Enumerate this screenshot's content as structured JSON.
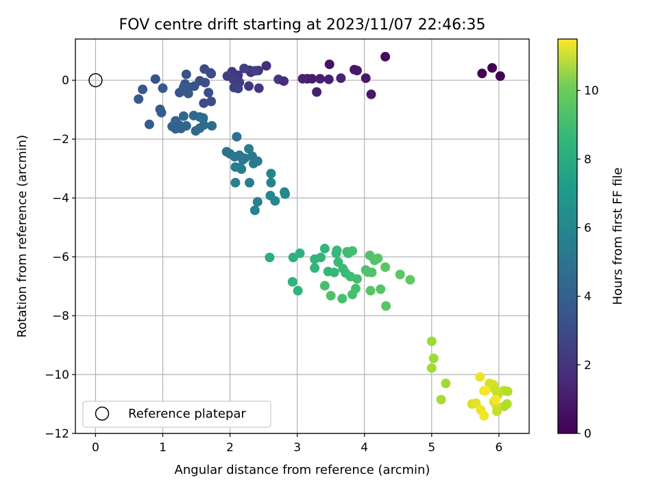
{
  "chart_data": {
    "type": "scatter",
    "title": "FOV centre drift starting at 2023/11/07 22:46:35",
    "xlabel": "Angular distance from reference (arcmin)",
    "ylabel": "Rotation from reference (arcmin)",
    "xlim": [
      -0.3,
      6.45
    ],
    "ylim": [
      -12,
      1.4
    ],
    "xticks": [
      0,
      1,
      2,
      3,
      4,
      5,
      6
    ],
    "yticks": [
      0,
      -2,
      -4,
      -6,
      -8,
      -10,
      -12
    ],
    "grid": true,
    "colormap": "viridis",
    "colorbar": {
      "label": "Hours from first FF file",
      "range": [
        0,
        11.5
      ],
      "ticks": [
        0,
        2,
        4,
        6,
        8,
        10
      ]
    },
    "legend": {
      "placement": "lower-left",
      "entries": [
        {
          "label": "Reference platepar",
          "marker": "open-circle"
        }
      ]
    },
    "reference_point": {
      "x": 0,
      "y": 0
    },
    "points": [
      [
        4.31,
        0.8,
        0.3
      ],
      [
        3.48,
        0.54,
        0.6
      ],
      [
        3.85,
        0.36,
        0.7
      ],
      [
        3.89,
        0.33,
        0.7
      ],
      [
        4.02,
        0.07,
        0.8
      ],
      [
        4.1,
        -0.48,
        0.8
      ],
      [
        3.15,
        0.05,
        0.9
      ],
      [
        3.22,
        0.05,
        0.9
      ],
      [
        3.34,
        0.05,
        1.0
      ],
      [
        3.29,
        -0.4,
        1.0
      ],
      [
        3.47,
        0.03,
        1.0
      ],
      [
        3.65,
        0.07,
        1.1
      ],
      [
        3.08,
        0.05,
        1.1
      ],
      [
        5.75,
        0.23,
        0.0
      ],
      [
        5.9,
        0.42,
        0.0
      ],
      [
        6.02,
        0.14,
        0.0
      ],
      [
        2.54,
        0.49,
        1.6
      ],
      [
        2.42,
        0.33,
        1.7
      ],
      [
        2.29,
        0.34,
        1.8
      ],
      [
        2.31,
        0.27,
        1.8
      ],
      [
        2.43,
        -0.27,
        1.9
      ],
      [
        2.28,
        -0.2,
        1.9
      ],
      [
        2.72,
        0.03,
        2.0
      ],
      [
        2.8,
        -0.03,
        1.5
      ],
      [
        2.12,
        0.17,
        1.8
      ],
      [
        2.03,
        0.29,
        1.9
      ],
      [
        1.96,
        0.14,
        2.1
      ],
      [
        2.07,
        0.1,
        2.0
      ],
      [
        2.14,
        -0.07,
        2.1
      ],
      [
        2.21,
        0.4,
        2.2
      ],
      [
        2.37,
        0.32,
        2.2
      ],
      [
        2.06,
        -0.25,
        2.3
      ],
      [
        2.12,
        -0.28,
        2.3
      ],
      [
        2.05,
        0.03,
        2.1
      ],
      [
        1.62,
        0.38,
        2.5
      ],
      [
        1.72,
        0.22,
        2.5
      ],
      [
        1.71,
        0.25,
        2.6
      ],
      [
        1.68,
        -0.42,
        2.7
      ],
      [
        1.72,
        -0.72,
        2.7
      ],
      [
        1.61,
        -0.78,
        2.6
      ],
      [
        1.55,
        -0.02,
        2.8
      ],
      [
        1.63,
        -0.08,
        2.8
      ],
      [
        1.35,
        0.2,
        2.9
      ],
      [
        1.33,
        -0.13,
        2.9
      ],
      [
        1.4,
        -0.24,
        3.0
      ],
      [
        1.33,
        -0.35,
        3.1
      ],
      [
        1.25,
        -0.42,
        3.1
      ],
      [
        1.38,
        -0.45,
        3.2
      ],
      [
        1.47,
        -0.2,
        3.0
      ],
      [
        1.31,
        -0.24,
        3.2
      ],
      [
        0.89,
        0.04,
        3.0
      ],
      [
        0.7,
        -0.31,
        3.2
      ],
      [
        1.0,
        -0.27,
        3.2
      ],
      [
        0.64,
        -0.64,
        3.3
      ],
      [
        0.96,
        -0.99,
        3.3
      ],
      [
        0.98,
        -1.1,
        3.4
      ],
      [
        0.8,
        -1.5,
        3.4
      ],
      [
        1.14,
        -1.57,
        3.5
      ],
      [
        1.19,
        -1.65,
        3.5
      ],
      [
        1.27,
        -1.64,
        3.6
      ],
      [
        1.24,
        -1.52,
        3.6
      ],
      [
        1.35,
        -1.55,
        3.7
      ],
      [
        1.19,
        -1.38,
        3.7
      ],
      [
        1.31,
        -1.22,
        3.8
      ],
      [
        1.46,
        -1.2,
        3.8
      ],
      [
        1.55,
        -1.25,
        3.9
      ],
      [
        1.6,
        -1.3,
        3.9
      ],
      [
        1.61,
        -1.52,
        4.0
      ],
      [
        1.55,
        -1.63,
        4.0
      ],
      [
        1.49,
        -1.72,
        4.0
      ],
      [
        1.6,
        -1.28,
        4.1
      ],
      [
        1.73,
        -1.55,
        4.1
      ],
      [
        2.1,
        -1.92,
        4.3
      ],
      [
        1.95,
        -2.43,
        4.4
      ],
      [
        2.0,
        -2.5,
        4.4
      ],
      [
        2.07,
        -2.6,
        4.5
      ],
      [
        2.14,
        -2.55,
        4.5
      ],
      [
        2.19,
        -2.7,
        4.6
      ],
      [
        2.22,
        -2.65,
        4.6
      ],
      [
        2.28,
        -2.33,
        4.7
      ],
      [
        2.33,
        -2.58,
        4.7
      ],
      [
        2.35,
        -2.83,
        4.8
      ],
      [
        2.41,
        -2.75,
        4.8
      ],
      [
        2.08,
        -2.95,
        4.9
      ],
      [
        2.15,
        -2.97,
        4.9
      ],
      [
        2.17,
        -3.02,
        4.9
      ],
      [
        2.08,
        -3.48,
        5.0
      ],
      [
        2.29,
        -3.48,
        5.0
      ],
      [
        2.41,
        -4.13,
        5.1
      ],
      [
        2.37,
        -4.42,
        5.1
      ],
      [
        2.61,
        -3.17,
        5.2
      ],
      [
        2.61,
        -3.48,
        5.2
      ],
      [
        2.6,
        -3.92,
        5.3
      ],
      [
        2.67,
        -4.1,
        5.3
      ],
      [
        2.81,
        -3.8,
        5.4
      ],
      [
        2.82,
        -3.87,
        5.4
      ],
      [
        2.59,
        -6.02,
        7.2
      ],
      [
        2.94,
        -6.02,
        7.3
      ],
      [
        3.04,
        -5.88,
        7.3
      ],
      [
        2.93,
        -6.85,
        7.4
      ],
      [
        3.01,
        -7.15,
        7.4
      ],
      [
        3.26,
        -6.08,
        7.5
      ],
      [
        3.35,
        -6.02,
        7.5
      ],
      [
        3.26,
        -6.38,
        7.5
      ],
      [
        3.41,
        -5.72,
        7.6
      ],
      [
        3.46,
        -6.5,
        7.6
      ],
      [
        3.55,
        -6.53,
        7.7
      ],
      [
        3.58,
        -5.88,
        7.7
      ],
      [
        3.59,
        -5.78,
        7.7
      ],
      [
        3.61,
        -6.18,
        7.8
      ],
      [
        3.68,
        -6.4,
        7.8
      ],
      [
        3.72,
        -6.55,
        7.8
      ],
      [
        3.79,
        -6.67,
        7.9
      ],
      [
        3.76,
        -5.88,
        7.9
      ],
      [
        3.74,
        -5.83,
        7.9
      ],
      [
        3.82,
        -5.8,
        8.0
      ],
      [
        3.89,
        -6.75,
        8.0
      ],
      [
        3.87,
        -7.08,
        8.0
      ],
      [
        3.82,
        -7.28,
        8.1
      ],
      [
        3.67,
        -7.42,
        8.1
      ],
      [
        3.41,
        -6.98,
        8.1
      ],
      [
        3.5,
        -7.32,
        8.2
      ],
      [
        4.02,
        -6.45,
        8.2
      ],
      [
        4.05,
        -6.52,
        8.2
      ],
      [
        4.08,
        -5.95,
        8.3
      ],
      [
        4.11,
        -6.53,
        8.3
      ],
      [
        4.15,
        -6.12,
        8.3
      ],
      [
        4.2,
        -6.05,
        8.4
      ],
      [
        4.09,
        -7.15,
        8.4
      ],
      [
        4.24,
        -7.1,
        8.4
      ],
      [
        4.31,
        -6.35,
        8.5
      ],
      [
        4.32,
        -7.67,
        8.5
      ],
      [
        4.53,
        -6.6,
        8.5
      ],
      [
        4.68,
        -6.78,
        8.6
      ],
      [
        5.0,
        -8.87,
        9.8
      ],
      [
        5.03,
        -9.45,
        9.8
      ],
      [
        5.0,
        -9.78,
        9.9
      ],
      [
        5.21,
        -10.3,
        9.9
      ],
      [
        5.14,
        -10.85,
        10.0
      ],
      [
        5.72,
        -10.08,
        11.2
      ],
      [
        5.78,
        -10.55,
        11.0
      ],
      [
        5.86,
        -10.3,
        10.8
      ],
      [
        5.92,
        -10.35,
        10.8
      ],
      [
        5.94,
        -10.5,
        10.6
      ],
      [
        5.98,
        -10.7,
        10.5
      ],
      [
        6.07,
        -10.55,
        10.4
      ],
      [
        6.13,
        -10.57,
        10.2
      ],
      [
        6.12,
        -11.0,
        10.2
      ],
      [
        6.08,
        -11.08,
        10.1
      ],
      [
        5.93,
        -10.92,
        10.6
      ],
      [
        5.96,
        -11.05,
        10.8
      ],
      [
        5.97,
        -11.25,
        10.5
      ],
      [
        5.6,
        -11.0,
        10.8
      ],
      [
        5.66,
        -10.97,
        11.0
      ],
      [
        5.73,
        -11.2,
        11.2
      ],
      [
        5.78,
        -11.4,
        11.3
      ],
      [
        5.95,
        -10.85,
        11.4
      ],
      [
        5.8,
        -10.55,
        11.5
      ]
    ]
  }
}
